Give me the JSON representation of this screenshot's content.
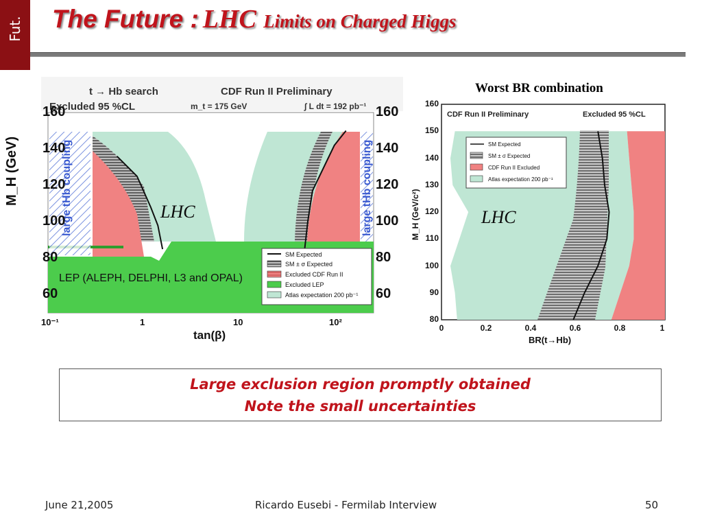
{
  "slide": {
    "tab_label": "Fut.",
    "title_part1": "The Future :",
    "title_part2": "LHC",
    "title_part3": "Limits on Charged Higgs",
    "right_chart_heading": "Worst BR combination",
    "lhc_label_left": "LHC",
    "lhc_label_right": "LHC",
    "conclusion_line1": "Large exclusion region promptly obtained",
    "conclusion_line2": "Note the small uncertainties",
    "footer_date": "June 21,2005",
    "footer_center": "Ricardo Eusebi - Fermilab Interview",
    "footer_page": "50"
  },
  "colors": {
    "title_red": "#c0141c",
    "tab_red": "#8b1014",
    "cdf_excluded": "#f08282",
    "lep_excluded": "#4ccc4c",
    "atlas_expectation": "#bfe6d4",
    "coupling_hatch": "#5a78d8"
  },
  "chart_data": [
    {
      "type": "area",
      "header_left": "t → Hb search",
      "header_right": "CDF Run II Preliminary",
      "excluded_label": "Excluded 95 %CL",
      "mass_label": "m_t = 175 GeV",
      "lumi_label": "∫ L dt = 192 pb⁻¹",
      "xlabel": "tan(β)",
      "ylabel": "M_H (GeV)",
      "xscale": "log",
      "xlim": [
        0.1,
        200
      ],
      "ylim": [
        50,
        160
      ],
      "xticks": [
        "10⁻¹",
        "1",
        "10",
        "10²"
      ],
      "yticks": [
        60,
        80,
        100,
        120,
        140,
        160
      ],
      "coupling_label": "large tHb coupling",
      "lep_label": "LEP (ALEPH, DELPHI, L3 and OPAL)",
      "legend": [
        "SM Expected",
        "SM ± σ Expected",
        "Excluded CDF Run II",
        "Excluded LEP",
        "Atlas expectation 200 pb⁻¹"
      ],
      "sm_expected_low_tanb": [
        [
          0.5,
          136
        ],
        [
          0.8,
          125
        ],
        [
          1.1,
          108
        ],
        [
          1.3,
          98
        ],
        [
          1.45,
          85
        ]
      ],
      "sm_expected_high_tanb": [
        [
          40,
          85
        ],
        [
          43,
          100
        ],
        [
          48,
          117
        ],
        [
          60,
          128
        ],
        [
          80,
          142
        ],
        [
          105,
          150
        ]
      ],
      "lep_excluded_boundary": [
        [
          0.1,
          84
        ],
        [
          1.0,
          84
        ],
        [
          1.3,
          82
        ],
        [
          1.7,
          89
        ],
        [
          200,
          89
        ]
      ]
    },
    {
      "type": "area",
      "header_left": "CDF Run II Preliminary",
      "header_right": "Excluded 95 %CL",
      "xlabel": "BR(t→Hb)",
      "ylabel": "M_H (GeV/c²)",
      "xlim": [
        0,
        1
      ],
      "ylim": [
        80,
        160
      ],
      "xticks": [
        "0",
        "0.2",
        "0.4",
        "0.6",
        "0.8",
        "1"
      ],
      "yticks": [
        80,
        90,
        100,
        110,
        120,
        130,
        140,
        150,
        160
      ],
      "legend": [
        "SM Expected",
        "SM ± σ Expected",
        "CDF Run II Excluded",
        "Atlas expectation 200 pb⁻¹"
      ],
      "sm_expected": [
        [
          0.7,
          150
        ],
        [
          0.72,
          140
        ],
        [
          0.73,
          130
        ],
        [
          0.75,
          120
        ],
        [
          0.74,
          110
        ],
        [
          0.7,
          100
        ],
        [
          0.64,
          90
        ],
        [
          0.59,
          80
        ]
      ],
      "cdf_excluded_left_edge": [
        [
          0.83,
          150
        ],
        [
          0.84,
          140
        ],
        [
          0.85,
          130
        ],
        [
          0.86,
          120
        ],
        [
          0.86,
          110
        ],
        [
          0.84,
          100
        ],
        [
          0.8,
          90
        ],
        [
          0.76,
          80
        ]
      ],
      "atlas_left_edge": [
        [
          0.06,
          150
        ],
        [
          0.04,
          140
        ],
        [
          0.05,
          130
        ],
        [
          0.12,
          120
        ],
        [
          0.08,
          110
        ],
        [
          0.04,
          100
        ],
        [
          0.06,
          90
        ],
        [
          0.07,
          80
        ]
      ]
    }
  ]
}
